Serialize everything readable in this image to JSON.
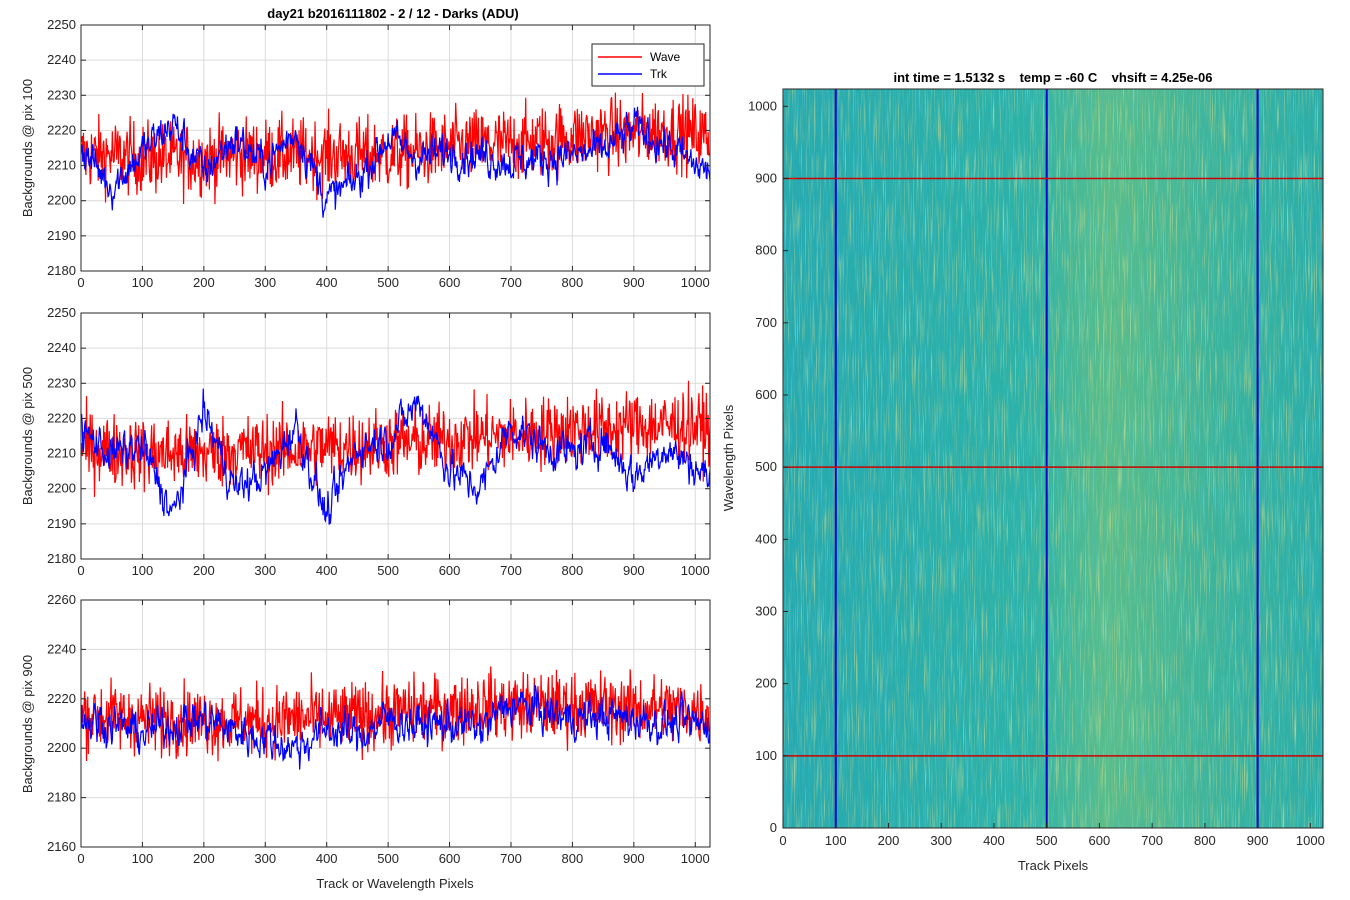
{
  "chart_data": [
    {
      "type": "line",
      "title": "day21 b2016111802 - 2 / 12 - Darks (ADU)",
      "ylabel": "Backgrounds @ pix 100",
      "xlabel": "",
      "xlim": [
        0,
        1024
      ],
      "ylim": [
        2180,
        2250
      ],
      "xticks": [
        0,
        100,
        200,
        300,
        400,
        500,
        600,
        700,
        800,
        900,
        1000
      ],
      "yticks": [
        2180,
        2190,
        2200,
        2210,
        2220,
        2230,
        2240,
        2250
      ],
      "grid": true,
      "legend": {
        "placement": "top-right",
        "entries": [
          "Wave",
          "Trk"
        ]
      },
      "series": [
        {
          "name": "Wave",
          "color": "#ff0000",
          "x": [
            0,
            50,
            100,
            150,
            200,
            250,
            300,
            350,
            400,
            450,
            500,
            550,
            600,
            650,
            700,
            750,
            800,
            850,
            900,
            950,
            1000,
            1024
          ],
          "values": [
            2213,
            2213,
            2212,
            2212,
            2212,
            2213,
            2213,
            2213,
            2213,
            2213,
            2213,
            2214,
            2215,
            2216,
            2216,
            2217,
            2218,
            2219,
            2219,
            2220,
            2219,
            2218
          ]
        },
        {
          "name": "Trk",
          "color": "#0000ff",
          "x": [
            0,
            50,
            100,
            150,
            200,
            250,
            300,
            350,
            400,
            450,
            500,
            550,
            600,
            650,
            700,
            750,
            800,
            850,
            900,
            950,
            1000,
            1024
          ],
          "values": [
            2215,
            2204,
            2214,
            2222,
            2208,
            2218,
            2210,
            2220,
            2200,
            2206,
            2218,
            2212,
            2214,
            2213,
            2211,
            2212,
            2213,
            2214,
            2221,
            2216,
            2210,
            2208
          ]
        }
      ]
    },
    {
      "type": "line",
      "title": "",
      "ylabel": "Backgrounds @ pix 500",
      "xlabel": "",
      "xlim": [
        0,
        1024
      ],
      "ylim": [
        2180,
        2250
      ],
      "xticks": [
        0,
        100,
        200,
        300,
        400,
        500,
        600,
        700,
        800,
        900,
        1000
      ],
      "yticks": [
        2180,
        2190,
        2200,
        2210,
        2220,
        2230,
        2240,
        2250
      ],
      "grid": true,
      "series": [
        {
          "name": "Wave",
          "color": "#ff0000",
          "x": [
            0,
            50,
            100,
            150,
            200,
            250,
            300,
            350,
            400,
            450,
            500,
            550,
            600,
            650,
            700,
            750,
            800,
            850,
            900,
            950,
            1000,
            1024
          ],
          "values": [
            2212,
            2211,
            2210,
            2210,
            2210,
            2211,
            2211,
            2211,
            2212,
            2212,
            2213,
            2213,
            2214,
            2215,
            2215,
            2216,
            2217,
            2217,
            2218,
            2218,
            2218,
            2217
          ]
        },
        {
          "name": "Trk",
          "color": "#0000ff",
          "x": [
            0,
            50,
            100,
            150,
            200,
            250,
            300,
            350,
            400,
            450,
            500,
            550,
            600,
            650,
            700,
            750,
            800,
            850,
            900,
            950,
            1000,
            1024
          ],
          "values": [
            2216,
            2210,
            2212,
            2192,
            2222,
            2200,
            2204,
            2218,
            2192,
            2212,
            2214,
            2225,
            2205,
            2200,
            2218,
            2212,
            2210,
            2214,
            2203,
            2212,
            2206,
            2203
          ]
        }
      ]
    },
    {
      "type": "line",
      "title": "",
      "ylabel": "Backgrounds @ pix 900",
      "xlabel": "Track or Wavelength Pixels",
      "xlim": [
        0,
        1024
      ],
      "ylim": [
        2160,
        2260
      ],
      "xticks": [
        0,
        100,
        200,
        300,
        400,
        500,
        600,
        700,
        800,
        900,
        1000
      ],
      "yticks": [
        2160,
        2180,
        2200,
        2220,
        2240,
        2260
      ],
      "grid": true,
      "series": [
        {
          "name": "Wave",
          "color": "#ff0000",
          "x": [
            0,
            50,
            100,
            150,
            200,
            250,
            300,
            350,
            400,
            450,
            500,
            550,
            600,
            650,
            700,
            750,
            800,
            850,
            900,
            950,
            1000,
            1024
          ],
          "values": [
            2214,
            2213,
            2212,
            2212,
            2211,
            2211,
            2211,
            2212,
            2212,
            2213,
            2214,
            2215,
            2216,
            2217,
            2217,
            2217,
            2217,
            2217,
            2216,
            2216,
            2215,
            2215
          ]
        },
        {
          "name": "Trk",
          "color": "#0000ff",
          "x": [
            0,
            50,
            100,
            150,
            200,
            250,
            300,
            350,
            400,
            450,
            500,
            550,
            600,
            650,
            700,
            750,
            800,
            850,
            900,
            950,
            1000,
            1024
          ],
          "values": [
            2212,
            2210,
            2206,
            2210,
            2212,
            2207,
            2204,
            2200,
            2208,
            2205,
            2212,
            2209,
            2210,
            2208,
            2218,
            2215,
            2212,
            2213,
            2212,
            2210,
            2210,
            2210
          ]
        }
      ]
    },
    {
      "type": "heatmap",
      "title": "int time = 1.5132 s    temp = -60 C    vhsift = 4.25e-06",
      "xlabel": "Track Pixels",
      "ylabel": "Wavelength Pixels",
      "xlim": [
        0,
        1024
      ],
      "ylim": [
        0,
        1024
      ],
      "xticks": [
        0,
        100,
        200,
        300,
        400,
        500,
        600,
        700,
        800,
        900,
        1000
      ],
      "yticks": [
        0,
        100,
        200,
        300,
        400,
        500,
        600,
        700,
        800,
        900,
        1000
      ],
      "colormap": [
        "#1a9eb5",
        "#2bb5a0",
        "#e0c040"
      ],
      "vertical_markers": {
        "color": "#0000cc",
        "values": [
          100,
          500,
          900
        ]
      },
      "horizontal_markers": {
        "color": "#cc0000",
        "values": [
          100,
          500,
          900
        ]
      }
    }
  ]
}
